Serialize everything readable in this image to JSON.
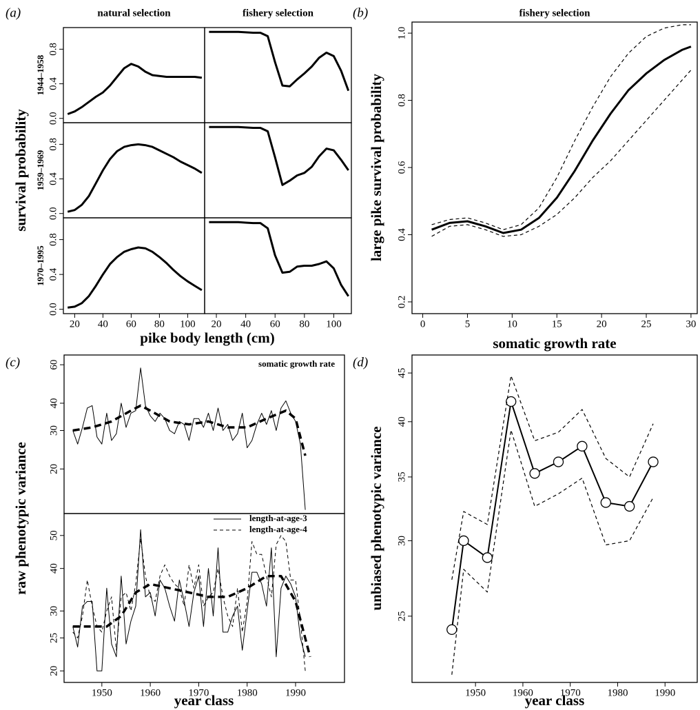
{
  "chart_data": [
    {
      "type": "line",
      "panel_label": "(a)",
      "title": "natural selection",
      "row_label": "1944–1958",
      "ylabel": "survival probability",
      "xlabel": "pike body length (cm)",
      "x": [
        15,
        20,
        25,
        30,
        35,
        40,
        45,
        50,
        55,
        60,
        65,
        70,
        75,
        80,
        85,
        90,
        95,
        100,
        105,
        110
      ],
      "xlim": [
        12,
        112
      ],
      "ylim": [
        -0.05,
        1.05
      ],
      "yticks": [
        {
          "value": 0,
          "label": "0.0"
        },
        0.4,
        0.8
      ],
      "series": [
        {
          "color": "#000000",
          "line_width": 3,
          "values": [
            0.05,
            0.08,
            0.13,
            0.19,
            0.25,
            0.3,
            0.38,
            0.48,
            0.58,
            0.63,
            0.6,
            0.54,
            0.5,
            0.49,
            0.48,
            0.48,
            0.48,
            0.48,
            0.48,
            0.47
          ]
        }
      ]
    },
    {
      "type": "line",
      "title": "fishery selection",
      "x": [
        15,
        20,
        25,
        30,
        35,
        40,
        45,
        50,
        55,
        60,
        65,
        70,
        75,
        80,
        85,
        90,
        95,
        100,
        105,
        110
      ],
      "xlim": [
        12,
        112
      ],
      "ylim": [
        -0.05,
        1.05
      ],
      "series": [
        {
          "color": "#000000",
          "line_width": 3,
          "values": [
            1,
            1,
            1,
            1,
            1,
            0.995,
            0.99,
            0.99,
            0.95,
            0.65,
            0.38,
            0.37,
            0.45,
            0.52,
            0.6,
            0.7,
            0.76,
            0.72,
            0.55,
            0.32
          ]
        }
      ]
    },
    {
      "type": "line",
      "row_label": "1959–1969",
      "x": [
        15,
        20,
        25,
        30,
        35,
        40,
        45,
        50,
        55,
        60,
        65,
        70,
        75,
        80,
        85,
        90,
        95,
        100,
        105,
        110
      ],
      "xlim": [
        12,
        112
      ],
      "ylim": [
        -0.05,
        1.05
      ],
      "yticks": [
        {
          "value": 0,
          "label": "0.0"
        },
        0.4,
        0.8
      ],
      "series": [
        {
          "color": "#000000",
          "line_width": 3,
          "values": [
            0.02,
            0.04,
            0.1,
            0.2,
            0.35,
            0.5,
            0.63,
            0.72,
            0.77,
            0.79,
            0.8,
            0.79,
            0.77,
            0.73,
            0.69,
            0.65,
            0.6,
            0.56,
            0.52,
            0.47
          ]
        }
      ]
    },
    {
      "type": "line",
      "x": [
        15,
        20,
        25,
        30,
        35,
        40,
        45,
        50,
        55,
        60,
        65,
        70,
        75,
        80,
        85,
        90,
        95,
        100,
        105,
        110
      ],
      "xlim": [
        12,
        112
      ],
      "ylim": [
        -0.05,
        1.05
      ],
      "series": [
        {
          "color": "#000000",
          "line_width": 3,
          "values": [
            1,
            1,
            1,
            1,
            1,
            0.995,
            0.99,
            0.99,
            0.95,
            0.65,
            0.33,
            0.38,
            0.44,
            0.47,
            0.54,
            0.66,
            0.75,
            0.73,
            0.62,
            0.5
          ]
        }
      ]
    },
    {
      "type": "line",
      "row_label": "1970–1995",
      "x": [
        15,
        20,
        25,
        30,
        35,
        40,
        45,
        50,
        55,
        60,
        65,
        70,
        75,
        80,
        85,
        90,
        95,
        100,
        105,
        110
      ],
      "xlim": [
        12,
        112
      ],
      "ylim": [
        -0.05,
        1.05
      ],
      "yticks": [
        {
          "value": 0,
          "label": "0.0"
        },
        0.4,
        0.8
      ],
      "xticks": [
        20,
        40,
        60,
        80,
        100
      ],
      "series": [
        {
          "color": "#000000",
          "line_width": 3,
          "values": [
            0.02,
            0.03,
            0.07,
            0.15,
            0.27,
            0.4,
            0.52,
            0.6,
            0.66,
            0.69,
            0.71,
            0.7,
            0.66,
            0.6,
            0.53,
            0.45,
            0.38,
            0.32,
            0.27,
            0.22
          ]
        }
      ]
    },
    {
      "type": "line",
      "x": [
        15,
        20,
        25,
        30,
        35,
        40,
        45,
        50,
        55,
        60,
        65,
        70,
        75,
        80,
        85,
        90,
        95,
        100,
        105,
        110
      ],
      "xlim": [
        12,
        112
      ],
      "ylim": [
        -0.05,
        1.05
      ],
      "xticks": [
        20,
        40,
        60,
        80,
        100
      ],
      "series": [
        {
          "color": "#000000",
          "line_width": 3,
          "values": [
            1,
            1,
            1,
            1,
            1,
            0.995,
            0.99,
            0.99,
            0.93,
            0.62,
            0.42,
            0.43,
            0.49,
            0.5,
            0.5,
            0.52,
            0.55,
            0.47,
            0.28,
            0.15
          ]
        }
      ]
    },
    {
      "type": "line",
      "panel_label": "(b)",
      "title": "fishery selection",
      "ylabel": "large pike survival probability",
      "xlabel": "somatic growth rate",
      "x": [
        1,
        3,
        5,
        7,
        9,
        11,
        13,
        15,
        17,
        19,
        21,
        23,
        25,
        27,
        29,
        30
      ],
      "xlim": [
        -1.2,
        30.7
      ],
      "ylim": [
        0.165,
        1.033
      ],
      "xticks": [
        0,
        5,
        10,
        15,
        20,
        25,
        30
      ],
      "yticks": [
        0.2,
        0.4,
        0.6,
        0.8,
        {
          "value": 1,
          "label": "1.0"
        }
      ],
      "series": [
        {
          "color": "#000000",
          "line_width": 3,
          "values": [
            0.415,
            0.435,
            0.44,
            0.425,
            0.405,
            0.415,
            0.45,
            0.51,
            0.59,
            0.68,
            0.76,
            0.83,
            0.88,
            0.92,
            0.95,
            0.96
          ]
        },
        {
          "color": "#000000",
          "line_width": 1.2,
          "style": "dashed",
          "values": [
            0.43,
            0.445,
            0.45,
            0.435,
            0.415,
            0.43,
            0.48,
            0.57,
            0.68,
            0.78,
            0.87,
            0.94,
            0.99,
            1.015,
            1.025,
            1.025
          ]
        },
        {
          "color": "#000000",
          "line_width": 1.2,
          "style": "dashed",
          "values": [
            0.395,
            0.425,
            0.43,
            0.415,
            0.395,
            0.4,
            0.425,
            0.46,
            0.51,
            0.57,
            0.62,
            0.68,
            0.74,
            0.8,
            0.86,
            0.89
          ]
        }
      ]
    },
    {
      "type": "line",
      "panel_label": "(c)",
      "annotation": "somatic growth rate",
      "ylabel": "raw phenotypic variance",
      "yscale": "log",
      "xlim": [
        1942.2,
        2000.1
      ],
      "ylim": [
        12.5,
        66.5
      ],
      "yticks": [
        20,
        30,
        40,
        60
      ],
      "series": [
        {
          "color": "#000000",
          "line_width": 1,
          "x": [
            1944,
            1945,
            1946,
            1947,
            1948,
            1949,
            1950,
            1951,
            1952,
            1953,
            1954,
            1955,
            1956,
            1957,
            1958,
            1959,
            1960,
            1961,
            1962,
            1963,
            1964,
            1965,
            1966,
            1967,
            1968,
            1969,
            1970,
            1971,
            1972,
            1973,
            1974,
            1975,
            1976,
            1977,
            1978,
            1979,
            1980,
            1981,
            1982,
            1983,
            1984,
            1985,
            1986,
            1987,
            1988,
            1989,
            1990,
            1991,
            1992
          ],
          "values": [
            30,
            26,
            31,
            38,
            39,
            28,
            26,
            36,
            27,
            29,
            40,
            31,
            36,
            37,
            58,
            39,
            35,
            33,
            36,
            34,
            30,
            29,
            33,
            32,
            27,
            34,
            34,
            31,
            36,
            30,
            38,
            30,
            32,
            27,
            29,
            36,
            25,
            27,
            32,
            36,
            32,
            37,
            30,
            38,
            41,
            36,
            33,
            26,
            13
          ]
        },
        {
          "color": "#000000",
          "line_width": 3.5,
          "style": "dashed",
          "x": [
            1944,
            1948,
            1952,
            1956,
            1958,
            1960,
            1964,
            1968,
            1972,
            1976,
            1980,
            1984,
            1988,
            1990,
            1992
          ],
          "values": [
            30,
            31,
            33,
            37,
            39,
            37,
            33,
            32,
            33,
            31,
            31,
            34,
            37,
            34,
            23
          ]
        }
      ]
    },
    {
      "type": "line",
      "xlabel": "year class",
      "legend": "top-right",
      "yscale": "log",
      "xlim": [
        1942.2,
        2000.1
      ],
      "ylim": [
        18.5,
        58
      ],
      "yticks": [
        20,
        25,
        30,
        40,
        50
      ],
      "xticks": [
        1950,
        1960,
        1970,
        1980,
        1990
      ],
      "series": [
        {
          "name": "length-at-age-3",
          "color": "#000000",
          "line_width": 1,
          "x": [
            1944,
            1945,
            1946,
            1947,
            1948,
            1949,
            1950,
            1951,
            1952,
            1953,
            1954,
            1955,
            1956,
            1957,
            1958,
            1959,
            1960,
            1961,
            1962,
            1963,
            1964,
            1965,
            1966,
            1967,
            1968,
            1969,
            1970,
            1971,
            1972,
            1973,
            1974,
            1975,
            1976,
            1977,
            1978,
            1979,
            1980,
            1981,
            1982,
            1983,
            1984,
            1985,
            1986,
            1987,
            1988,
            1989,
            1990,
            1991,
            1992
          ],
          "values": [
            27,
            23.5,
            31,
            32,
            32,
            20,
            20,
            35,
            24,
            22,
            38,
            24,
            28,
            31,
            52,
            33,
            34,
            29,
            37,
            35,
            31,
            28,
            37,
            32,
            27,
            34,
            38,
            27,
            40,
            29,
            46,
            26,
            26,
            29,
            31,
            23,
            30,
            39,
            39,
            36,
            31,
            46,
            22,
            35,
            38,
            36,
            33,
            25,
            22
          ]
        },
        {
          "name": "length-at-age-4",
          "color": "#000000",
          "line_width": 1,
          "style": "dashed",
          "x": [
            1944,
            1945,
            1946,
            1947,
            1948,
            1949,
            1950,
            1951,
            1952,
            1953,
            1954,
            1955,
            1956,
            1957,
            1958,
            1959,
            1960,
            1961,
            1962,
            1963,
            1964,
            1965,
            1966,
            1967,
            1968,
            1969,
            1970,
            1971,
            1972,
            1973,
            1974,
            1975,
            1976,
            1977,
            1978,
            1979,
            1980,
            1981,
            1982,
            1983,
            1984,
            1985,
            1986,
            1987,
            1988,
            1989,
            1990,
            1991,
            1992
          ],
          "values": [
            26,
            25,
            29,
            37,
            31,
            27,
            26,
            30,
            33,
            23,
            33,
            34,
            30,
            36,
            49,
            38,
            33,
            32,
            38,
            41,
            38,
            36,
            35,
            31,
            41,
            35,
            41,
            31,
            33,
            34,
            40,
            33,
            29,
            27,
            35,
            26,
            32,
            48,
            44,
            44,
            38,
            33,
            47,
            50,
            48,
            37,
            37,
            28,
            20
          ]
        },
        {
          "color": "#000000",
          "line_width": 3.5,
          "style": "dashed",
          "x": [
            1944,
            1948,
            1951,
            1954,
            1957,
            1960,
            1964,
            1968,
            1972,
            1976,
            1980,
            1984,
            1987,
            1990,
            1993
          ],
          "values": [
            27,
            27,
            27,
            29,
            34,
            36,
            35,
            34,
            33,
            33,
            35,
            38,
            38,
            32,
            22
          ]
        }
      ]
    },
    {
      "type": "line",
      "panel_label": "(d)",
      "ylabel": "unbiased phenotypic variance",
      "xlabel": "year class",
      "yscale": "log",
      "x": [
        1945,
        1947.5,
        1952.5,
        1957.5,
        1962.5,
        1967.5,
        1972.5,
        1977.5,
        1982.5,
        1987.5
      ],
      "xlim": [
        1936.6,
        1996.8
      ],
      "ylim": [
        21.3,
        47
      ],
      "xticks": [
        1950,
        1960,
        1970,
        1980,
        1990
      ],
      "yticks": [
        25,
        30,
        35,
        40,
        45
      ],
      "series": [
        {
          "color": "#000000",
          "line_width": 2,
          "marker": "circle",
          "values": [
            24.2,
            30,
            28.8,
            42,
            35.3,
            36.3,
            37.7,
            32.9,
            32.6,
            36.3
          ]
        },
        {
          "color": "#000000",
          "line_width": 1.2,
          "style": "dashed",
          "values": [
            27.3,
            32.2,
            31.2,
            44.7,
            38.2,
            39,
            41.2,
            36.6,
            35,
            39.8
          ]
        },
        {
          "color": "#000000",
          "line_width": 1.2,
          "style": "dashed",
          "values": [
            21.7,
            28,
            26.5,
            39.2,
            32.6,
            33.6,
            34.9,
            29.7,
            30,
            33.3
          ]
        }
      ]
    }
  ]
}
